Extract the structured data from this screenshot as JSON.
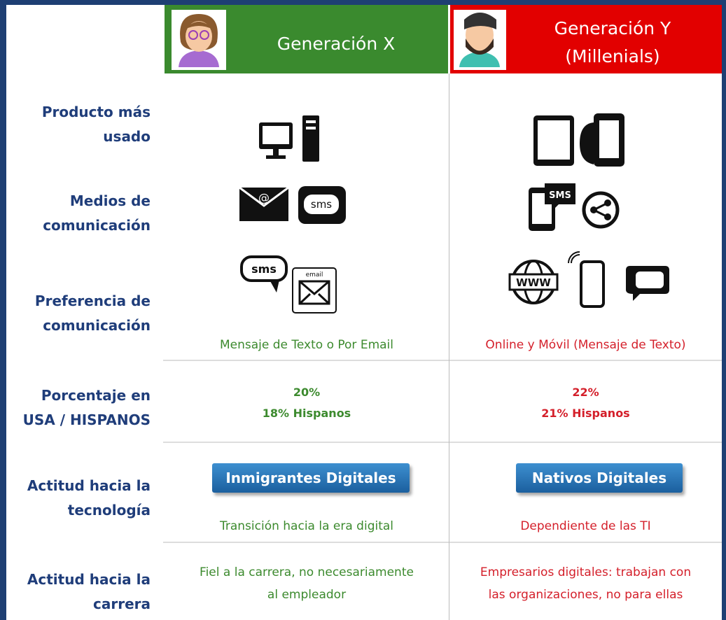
{
  "header": {
    "columns": [
      {
        "title": "Generación X"
      },
      {
        "title_lines": [
          "Generación Y",
          "(Millenials)"
        ]
      }
    ]
  },
  "rows": [
    {
      "label_lines": [
        "Producto más",
        "usado"
      ]
    },
    {
      "label_lines": [
        "Medios de",
        "comunicación"
      ]
    },
    {
      "label_lines": [
        "Preferencia de",
        "comunicación"
      ],
      "cells": [
        {
          "lines": [
            "Mensaje de Texto o Por Email"
          ]
        },
        {
          "lines": [
            "Online y Móvil (Mensaje de Texto)"
          ]
        }
      ]
    },
    {
      "label_lines": [
        "Porcentaje en",
        "USA / HISPANOS"
      ],
      "cells": [
        {
          "lines": [
            "20%",
            "18% Hispanos"
          ]
        },
        {
          "lines": [
            "22%",
            "21% Hispanos"
          ]
        }
      ]
    },
    {
      "label_lines": [
        "Actitud hacia la",
        "tecnología"
      ],
      "cells": [
        {
          "button": "Inmigrantes Digitales",
          "lines": [
            "Transición hacia la era digital"
          ]
        },
        {
          "button": "Nativos Digitales",
          "lines": [
            "Dependiente de las TI"
          ]
        }
      ]
    },
    {
      "label_lines": [
        "Actitud hacia la",
        "carrera"
      ],
      "cells": [
        {
          "lines": [
            "Fiel a la carrera, no necesariamente",
            "al empleador"
          ]
        },
        {
          "lines": [
            "Empresarios digitales: trabajan con",
            "las organizaciones, no para ellas"
          ]
        }
      ]
    }
  ]
}
